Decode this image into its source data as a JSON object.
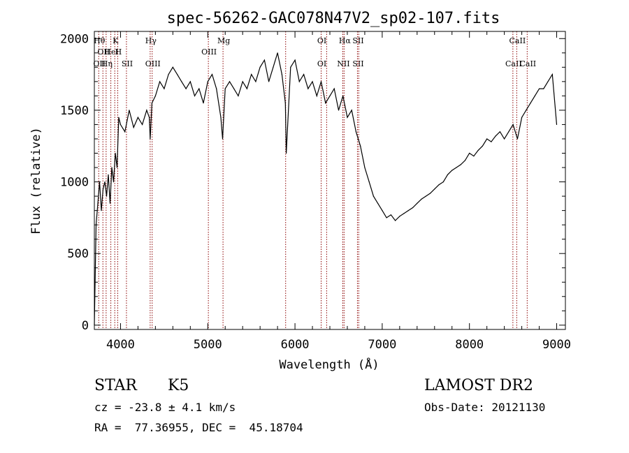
{
  "chart_data": {
    "type": "line",
    "title": "spec-56262-GAC078N47V2_sp02-107.fits",
    "xlabel": "Wavelength (Å)",
    "ylabel": "Flux (relative)",
    "xlim": [
      3700,
      9100
    ],
    "ylim": [
      -30,
      2050
    ],
    "xticks": [
      4000,
      5000,
      6000,
      7000,
      8000,
      9000
    ],
    "yticks": [
      0,
      500,
      1000,
      1500,
      2000
    ],
    "series": [
      {
        "x": [
          3700,
          3720,
          3740,
          3760,
          3780,
          3800,
          3820,
          3840,
          3860,
          3880,
          3900,
          3920,
          3940,
          3960,
          3980,
          4000,
          4050,
          4100,
          4150,
          4200,
          4250,
          4300,
          4330,
          4340,
          4360,
          4400,
          4450,
          4500,
          4550,
          4600,
          4650,
          4700,
          4750,
          4800,
          4850,
          4900,
          4950,
          5000,
          5050,
          5100,
          5150,
          5170,
          5200,
          5250,
          5300,
          5350,
          5400,
          5450,
          5500,
          5550,
          5600,
          5650,
          5700,
          5750,
          5800,
          5850,
          5890,
          5900,
          5950,
          6000,
          6050,
          6100,
          6150,
          6200,
          6250,
          6300,
          6350,
          6400,
          6450,
          6500,
          6550,
          6600,
          6650,
          6700,
          6750,
          6800,
          6850,
          6900,
          6950,
          7000,
          7050,
          7100,
          7150,
          7200,
          7250,
          7300,
          7350,
          7400,
          7450,
          7500,
          7550,
          7600,
          7650,
          7700,
          7750,
          7800,
          7850,
          7900,
          7950,
          8000,
          8050,
          8100,
          8150,
          8200,
          8250,
          8300,
          8350,
          8400,
          8450,
          8500,
          8550,
          8600,
          8650,
          8700,
          8750,
          8800,
          8850,
          8900,
          8950,
          9000
        ],
        "y": [
          0,
          700,
          850,
          1000,
          800,
          950,
          1000,
          900,
          1050,
          850,
          1100,
          1000,
          1200,
          1100,
          1450,
          1400,
          1350,
          1500,
          1380,
          1450,
          1400,
          1500,
          1450,
          1300,
          1550,
          1600,
          1700,
          1650,
          1750,
          1800,
          1750,
          1700,
          1650,
          1700,
          1600,
          1650,
          1550,
          1700,
          1750,
          1650,
          1450,
          1300,
          1650,
          1700,
          1650,
          1600,
          1700,
          1650,
          1750,
          1700,
          1800,
          1850,
          1700,
          1800,
          1900,
          1750,
          1550,
          1200,
          1800,
          1850,
          1700,
          1750,
          1650,
          1700,
          1600,
          1700,
          1550,
          1600,
          1650,
          1500,
          1600,
          1450,
          1500,
          1350,
          1250,
          1100,
          1000,
          900,
          850,
          800,
          750,
          770,
          730,
          760,
          780,
          800,
          820,
          850,
          880,
          900,
          920,
          950,
          980,
          1000,
          1050,
          1080,
          1100,
          1120,
          1150,
          1200,
          1180,
          1220,
          1250,
          1300,
          1280,
          1320,
          1350,
          1300,
          1350,
          1400,
          1300,
          1450,
          1500,
          1550,
          1600,
          1650,
          1650,
          1700,
          1750,
          1400
        ]
      }
    ],
    "lines": [
      {
        "w": 3750,
        "top": "Hθ",
        "bot": "OII"
      },
      {
        "w": 3798,
        "top": "",
        "bot": "OII"
      },
      {
        "w": 3835,
        "top": "",
        "bot": "Hη"
      },
      {
        "w": 3889,
        "top": "",
        "bot": "HeI"
      },
      {
        "w": 3934,
        "top": "K",
        "bot": ""
      },
      {
        "w": 3968,
        "top": "",
        "bot": "H"
      },
      {
        "w": 4068,
        "top": "",
        "bot": "SII"
      },
      {
        "w": 4340,
        "top": "Hγ",
        "bot": ""
      },
      {
        "w": 4363,
        "top": "",
        "bot": "OIII"
      },
      {
        "w": 5007,
        "top": "",
        "bot": "OIII"
      },
      {
        "w": 5175,
        "top": "Mg",
        "bot": ""
      },
      {
        "w": 5893,
        "top": "",
        "bot": ""
      },
      {
        "w": 6300,
        "top": "OI",
        "bot": "OI"
      },
      {
        "w": 6363,
        "top": "",
        "bot": ""
      },
      {
        "w": 6548,
        "top": "",
        "bot": "NII"
      },
      {
        "w": 6563,
        "top": "Hα",
        "bot": ""
      },
      {
        "w": 6716,
        "top": "SII",
        "bot": "SII"
      },
      {
        "w": 6731,
        "top": "",
        "bot": ""
      },
      {
        "w": 8498,
        "top": "",
        "bot": "CaII"
      },
      {
        "w": 8542,
        "top": "CaII",
        "bot": ""
      },
      {
        "w": 8662,
        "top": "",
        "bot": "CaII"
      }
    ]
  },
  "info": {
    "obj_class": "STAR",
    "subclass": "K5",
    "cz": "cz = -23.8 ± 4.1 km/s",
    "radec": "RA =  77.36955, DEC =  45.18704",
    "survey": "LAMOST DR2",
    "obsdate": "Obs-Date: 20121130"
  }
}
